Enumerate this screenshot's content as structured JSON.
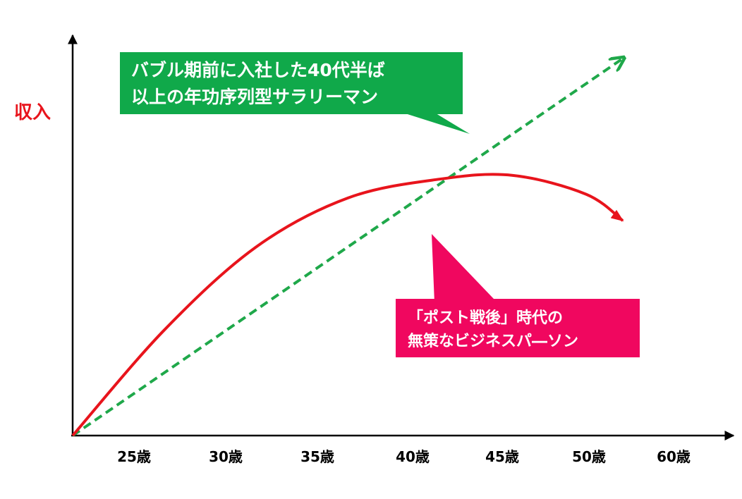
{
  "chart_data": {
    "type": "line",
    "ylabel": "収入",
    "x_ticks": [
      "25歳",
      "30歳",
      "35歳",
      "40歳",
      "45歳",
      "50歳",
      "60歳"
    ],
    "grid": false,
    "series": [
      {
        "name": "バブル期前に入社した40代半ば以上の年功序列型サラリーマン",
        "style": "dashed",
        "color": "#1fa84a",
        "x": [
          20,
          50
        ],
        "y": [
          0,
          100
        ]
      },
      {
        "name": "「ポスト戦後」時代の無策なビジネスパ―ソン",
        "style": "solid",
        "color": "#e8141c",
        "x": [
          20,
          25,
          30,
          35,
          40,
          44,
          48,
          50
        ],
        "y": [
          0,
          28,
          50,
          63,
          68,
          69,
          64,
          57
        ]
      }
    ]
  },
  "callouts": {
    "green": {
      "line1": "バブル期前に入社した40代半ば",
      "line2": "以上の年功序列型サラリーマン",
      "color": "#10a94a"
    },
    "pink": {
      "line1": "「ポスト戦後」時代の",
      "line2": "無策なビジネスパ―ソン",
      "color": "#f0075f"
    }
  }
}
